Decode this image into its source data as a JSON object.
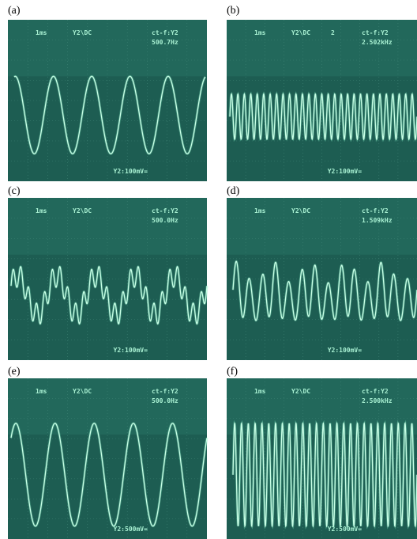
{
  "panels": [
    {
      "label": "(a)",
      "timebase": "1ms",
      "channel": "Y2\\DC",
      "trigger": "ct-f:Y2",
      "frequency": "500.7Hz",
      "scale": "Y2:100mV="
    },
    {
      "label": "(b)",
      "timebase": "1ms",
      "channel": "Y2\\DC",
      "extra": "2",
      "trigger": "ct-f:Y2",
      "frequency": "2.502kHz",
      "scale": "Y2:100mV="
    },
    {
      "label": "(c)",
      "timebase": "1ms",
      "channel": "Y2\\DC",
      "trigger": "ct-f:Y2",
      "frequency": "500.0Hz",
      "scale": "Y2:100mV="
    },
    {
      "label": "(d)",
      "timebase": "1ms",
      "channel": "Y2\\DC",
      "trigger": "ct-f:Y2",
      "frequency": "1.509kHz",
      "scale": "Y2:100mV="
    },
    {
      "label": "(e)",
      "timebase": "1ms",
      "channel": "Y2\\DC",
      "trigger": "ct-f:Y2",
      "frequency": "500.0Hz",
      "scale": "Y2:500mV="
    },
    {
      "label": "(f)",
      "timebase": "1ms",
      "channel": "Y2\\DC",
      "trigger": "ct-f:Y2",
      "frequency": "2.500kHz",
      "scale": "Y2:500mV="
    }
  ]
}
